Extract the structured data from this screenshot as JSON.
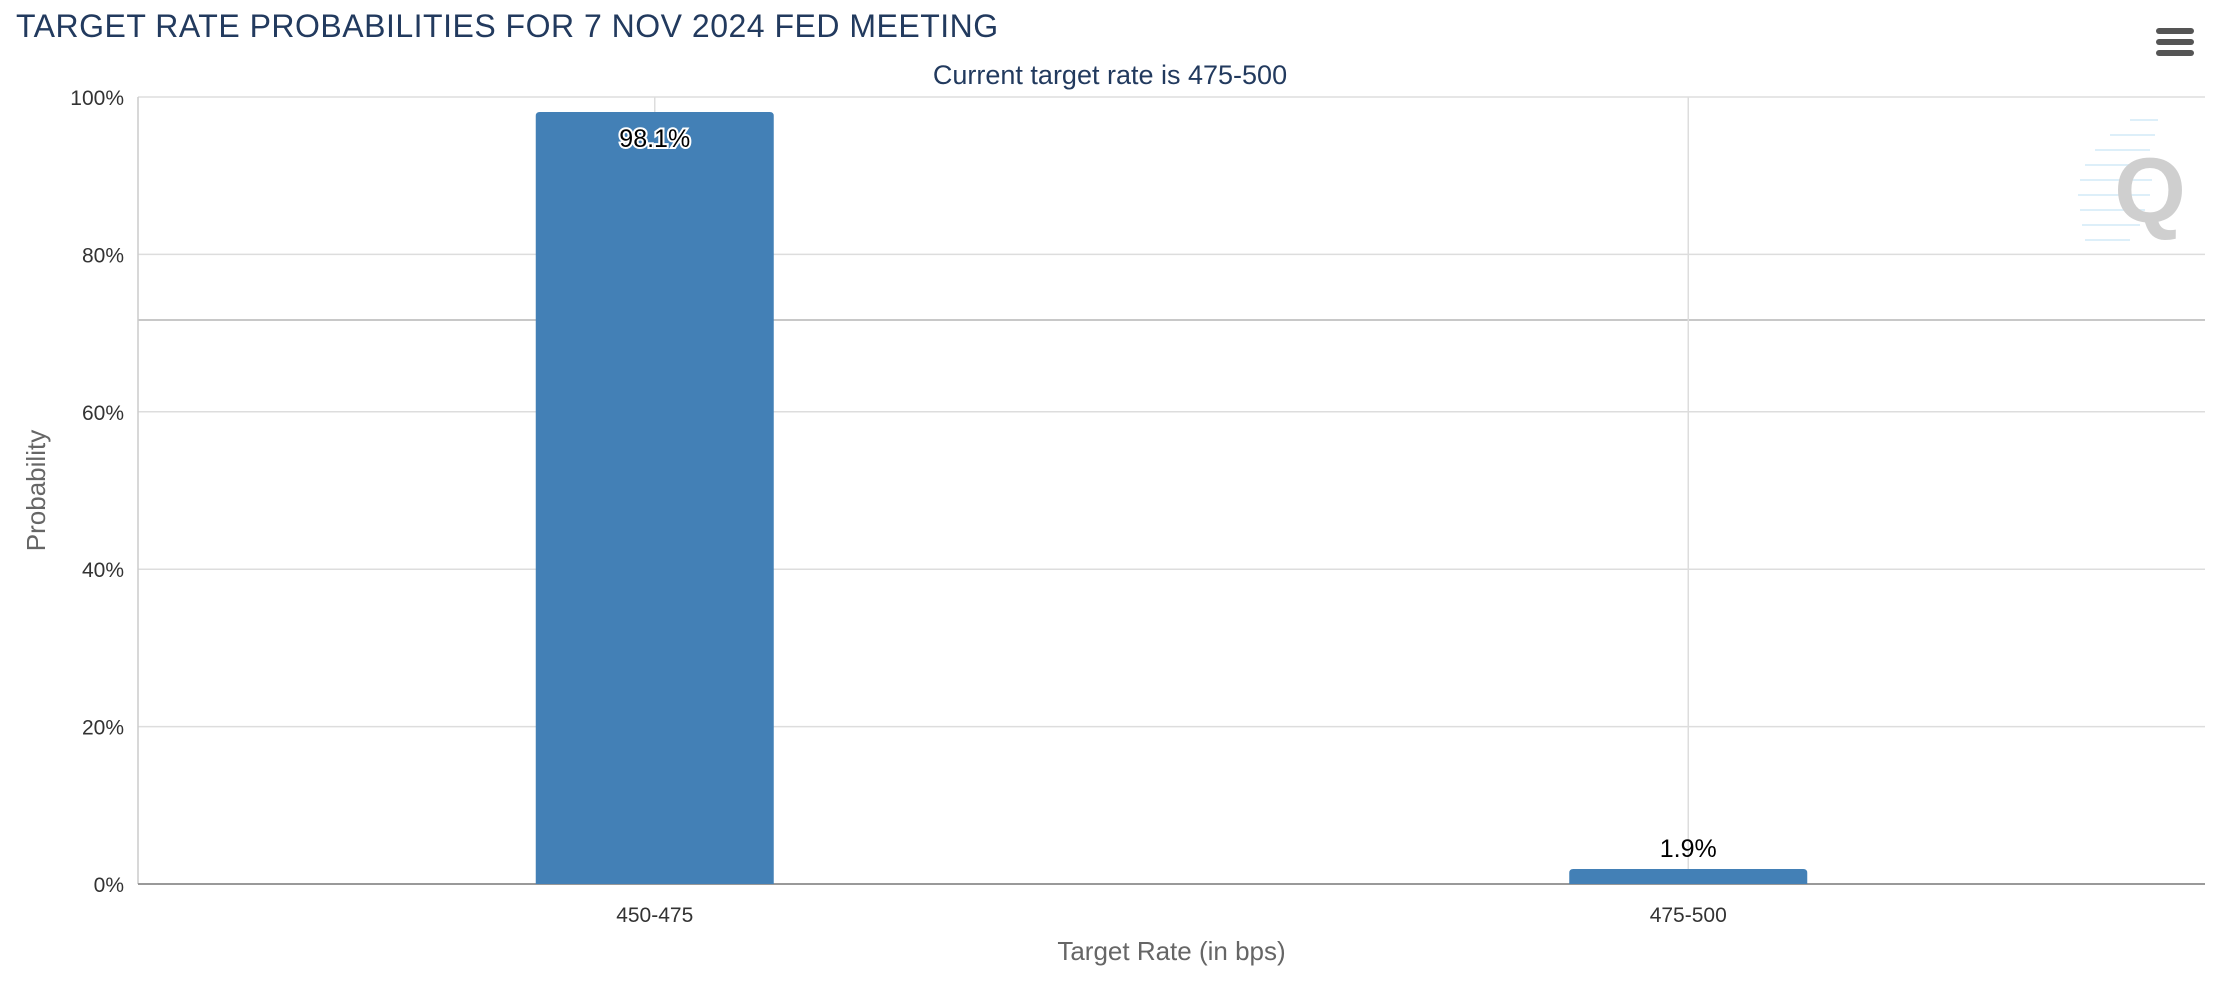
{
  "header": {
    "title": "TARGET RATE PROBABILITIES FOR 7 NOV 2024 FED MEETING",
    "subtitle": "Current target rate is 475-500"
  },
  "menu": {
    "icon": "hamburger-menu-icon"
  },
  "watermark": {
    "icon": "q-logo-watermark"
  },
  "colors": {
    "bar": "#4380b6",
    "title": "#223a5e",
    "grid": "#dddddd"
  },
  "chart_data": {
    "type": "bar",
    "categories": [
      "450-475",
      "475-500"
    ],
    "values": [
      98.1,
      1.9
    ],
    "data_labels": [
      "98.1%",
      "1.9%"
    ],
    "xlabel": "Target Rate (in bps)",
    "ylabel": "Probability",
    "ylim": [
      0,
      100
    ],
    "y_ticks": [
      0,
      20,
      40,
      60,
      80,
      100
    ],
    "y_tick_labels": [
      "0%",
      "20%",
      "40%",
      "60%",
      "80%",
      "100%"
    ],
    "grid": true,
    "legend": "none"
  }
}
